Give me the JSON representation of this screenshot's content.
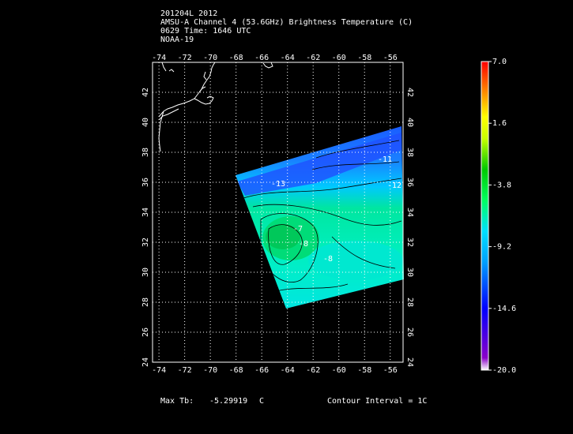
{
  "header": {
    "line1": "201204L 2012",
    "line2": "AMSU-A Channel 4 (53.6GHz) Brightness Temperature (C)",
    "line3": "0629 Time: 1646 UTC",
    "line4": "NOAA-19"
  },
  "footer": {
    "max_label": "Max Tb:",
    "max_value": "-5.29919",
    "max_unit": "C",
    "contour": "Contour Interval = 1C"
  },
  "map": {
    "lon_ticks": [
      "-74",
      "-72",
      "-70",
      "-68",
      "-66",
      "-64",
      "-62",
      "-60",
      "-58",
      "-56"
    ],
    "lat_ticks": [
      "24",
      "26",
      "28",
      "30",
      "32",
      "34",
      "36",
      "38",
      "40",
      "42"
    ],
    "lon_range": [
      -74.5,
      -55
    ],
    "lat_range": [
      24,
      44
    ],
    "contour_labels": [
      "-7",
      "-8",
      "-8",
      "-11",
      "-12",
      "-13"
    ]
  },
  "colorbar": {
    "labels": [
      "7.0",
      "1.6",
      "-3.8",
      "-9.2",
      "-14.6",
      "-20.0"
    ],
    "range": [
      -20,
      7
    ],
    "colors": [
      "#ffffff",
      "#8a00c8",
      "#0000ff",
      "#00a0ff",
      "#00e0ff",
      "#00ff60",
      "#00c800",
      "#c8ff00",
      "#ffff00",
      "#ff8c00",
      "#ff0000"
    ]
  }
}
